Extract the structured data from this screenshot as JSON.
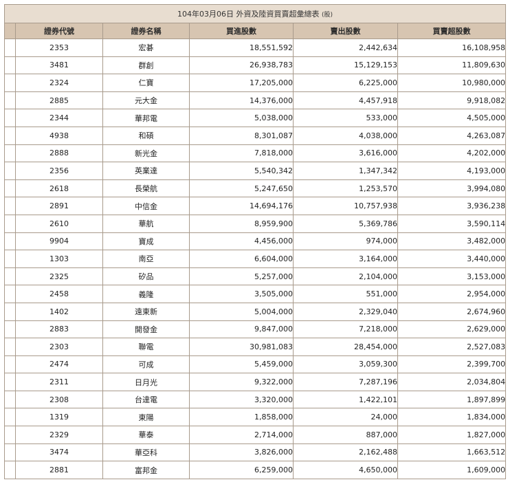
{
  "table": {
    "title": "104年03月06日 外資及陸資買賣超彙總表",
    "unit": "(股)",
    "headers": [
      "證券代號",
      "證券名稱",
      "買進股數",
      "賣出股數",
      "買賣超股數"
    ],
    "rows": [
      [
        "2353",
        "宏碁",
        "18,551,592",
        "2,442,634",
        "16,108,958"
      ],
      [
        "3481",
        "群創",
        "26,938,783",
        "15,129,153",
        "11,809,630"
      ],
      [
        "2324",
        "仁寶",
        "17,205,000",
        "6,225,000",
        "10,980,000"
      ],
      [
        "2885",
        "元大金",
        "14,376,000",
        "4,457,918",
        "9,918,082"
      ],
      [
        "2344",
        "華邦電",
        "5,038,000",
        "533,000",
        "4,505,000"
      ],
      [
        "4938",
        "和碩",
        "8,301,087",
        "4,038,000",
        "4,263,087"
      ],
      [
        "2888",
        "新光金",
        "7,818,000",
        "3,616,000",
        "4,202,000"
      ],
      [
        "2356",
        "英業達",
        "5,540,342",
        "1,347,342",
        "4,193,000"
      ],
      [
        "2618",
        "長榮航",
        "5,247,650",
        "1,253,570",
        "3,994,080"
      ],
      [
        "2891",
        "中信金",
        "14,694,176",
        "10,757,938",
        "3,936,238"
      ],
      [
        "2610",
        "華航",
        "8,959,900",
        "5,369,786",
        "3,590,114"
      ],
      [
        "9904",
        "寶成",
        "4,456,000",
        "974,000",
        "3,482,000"
      ],
      [
        "1303",
        "南亞",
        "6,604,000",
        "3,164,000",
        "3,440,000"
      ],
      [
        "2325",
        "矽品",
        "5,257,000",
        "2,104,000",
        "3,153,000"
      ],
      [
        "2458",
        "義隆",
        "3,505,000",
        "551,000",
        "2,954,000"
      ],
      [
        "1402",
        "遠東新",
        "5,004,000",
        "2,329,040",
        "2,674,960"
      ],
      [
        "2883",
        "開發金",
        "9,847,000",
        "7,218,000",
        "2,629,000"
      ],
      [
        "2303",
        "聯電",
        "30,981,083",
        "28,454,000",
        "2,527,083"
      ],
      [
        "2474",
        "可成",
        "5,459,000",
        "3,059,300",
        "2,399,700"
      ],
      [
        "2311",
        "日月光",
        "9,322,000",
        "7,287,196",
        "2,034,804"
      ],
      [
        "2308",
        "台達電",
        "3,320,000",
        "1,422,101",
        "1,897,899"
      ],
      [
        "1319",
        "東陽",
        "1,858,000",
        "24,000",
        "1,834,000"
      ],
      [
        "2329",
        "華泰",
        "2,714,000",
        "887,000",
        "1,827,000"
      ],
      [
        "3474",
        "華亞科",
        "3,826,000",
        "2,162,488",
        "1,663,512"
      ],
      [
        "2881",
        "富邦金",
        "6,259,000",
        "4,650,000",
        "1,609,000"
      ]
    ]
  }
}
